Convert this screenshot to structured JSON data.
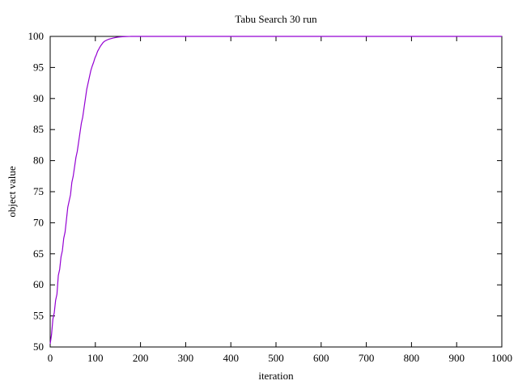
{
  "chart_data": {
    "type": "line",
    "title": "Tabu Search 30 run",
    "xlabel": "iteration",
    "ylabel": "object value",
    "xlim": [
      0,
      1000
    ],
    "ylim": [
      50,
      100
    ],
    "xticks": [
      0,
      100,
      200,
      300,
      400,
      500,
      600,
      700,
      800,
      900,
      1000
    ],
    "yticks": [
      50,
      55,
      60,
      65,
      70,
      75,
      80,
      85,
      90,
      95,
      100
    ],
    "grid": false,
    "legend": "none",
    "colors": {
      "series": "#9400d3",
      "axis": "#000000"
    },
    "series": [
      {
        "x": [
          0,
          3,
          6,
          9,
          12,
          15,
          18,
          21,
          24,
          27,
          30,
          33,
          36,
          39,
          42,
          45,
          48,
          51,
          54,
          57,
          60,
          63,
          66,
          69,
          72,
          75,
          78,
          81,
          84,
          87,
          90,
          93,
          96,
          99,
          102,
          105,
          108,
          111,
          114,
          117,
          120,
          125,
          130,
          135,
          140,
          145,
          150,
          155,
          160,
          165,
          170,
          175,
          180,
          190,
          200,
          300,
          400,
          500,
          600,
          700,
          800,
          900,
          1000
        ],
        "y": [
          50.5,
          52.0,
          54.5,
          55.5,
          57.5,
          58.5,
          61.5,
          62.5,
          64.5,
          65.5,
          67.5,
          68.5,
          70.5,
          72.5,
          73.5,
          74.5,
          76.5,
          77.5,
          79.0,
          80.5,
          81.5,
          83.0,
          84.5,
          86.0,
          87.0,
          88.5,
          90.0,
          91.5,
          92.5,
          93.5,
          94.5,
          95.2,
          95.8,
          96.5,
          97.0,
          97.6,
          98.0,
          98.4,
          98.7,
          99.0,
          99.2,
          99.4,
          99.55,
          99.65,
          99.75,
          99.82,
          99.88,
          99.92,
          99.95,
          99.97,
          99.98,
          99.99,
          100,
          100,
          100,
          100,
          100,
          100,
          100,
          100,
          100,
          100,
          100
        ]
      }
    ]
  }
}
